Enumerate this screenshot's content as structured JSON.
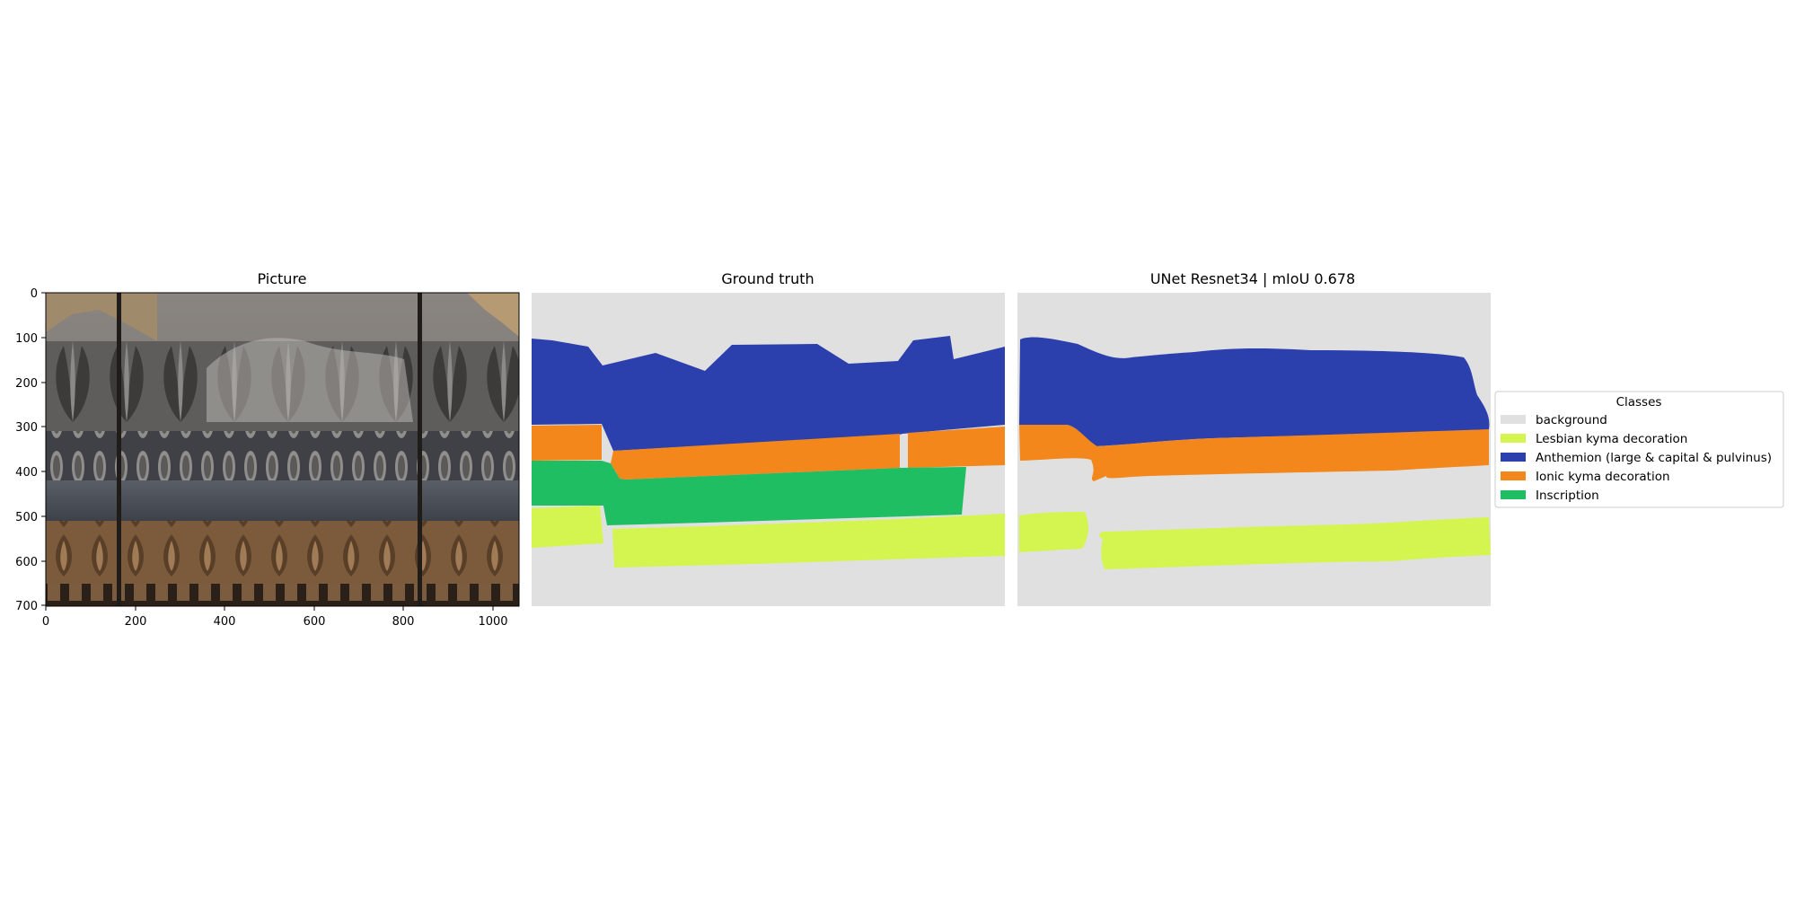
{
  "panels": {
    "picture_title": "Picture",
    "ground_truth_title": "Ground truth",
    "prediction_title": "UNet Resnet34 | mIoU 0.678"
  },
  "axes": {
    "x_ticks": [
      "0",
      "200",
      "400",
      "600",
      "800",
      "1000"
    ],
    "y_ticks": [
      "0",
      "100",
      "200",
      "300",
      "400",
      "500",
      "600",
      "700"
    ]
  },
  "legend": {
    "title": "Classes",
    "items": [
      {
        "label": "background",
        "color": "#e0e0e0"
      },
      {
        "label": "Lesbian kyma decoration",
        "color": "#d4f550"
      },
      {
        "label": "Anthemion (large & capital & pulvinus)",
        "color": "#2b3fad"
      },
      {
        "label": "Ionic kyma decoration",
        "color": "#f3871c"
      },
      {
        "label": "Inscription",
        "color": "#1fbe62"
      }
    ]
  },
  "colors": {
    "background": "#e0e0e0",
    "lesbian": "#d4f550",
    "anthemion": "#2b3fad",
    "ionic": "#f3871c",
    "inscription": "#1fbe62"
  }
}
